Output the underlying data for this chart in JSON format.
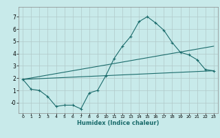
{
  "xlabel": "Humidex (Indice chaleur)",
  "background_color": "#c8eaea",
  "grid_color": "#b0c8c8",
  "line_color": "#1a6b6b",
  "xlim": [
    -0.5,
    23.5
  ],
  "ylim": [
    -0.85,
    7.8
  ],
  "xticks": [
    0,
    1,
    2,
    3,
    4,
    5,
    6,
    7,
    8,
    9,
    10,
    11,
    12,
    13,
    14,
    15,
    16,
    17,
    18,
    19,
    20,
    21,
    22,
    23
  ],
  "yticks": [
    0,
    1,
    2,
    3,
    4,
    5,
    6,
    7
  ],
  "series1_x": [
    0,
    1,
    2,
    3,
    4,
    5,
    6,
    7,
    8,
    9,
    10,
    11,
    12,
    13,
    14,
    15,
    16,
    17,
    18,
    19,
    20,
    21,
    22,
    23
  ],
  "series1_y": [
    1.9,
    1.1,
    1.0,
    0.5,
    -0.3,
    -0.2,
    -0.2,
    -0.5,
    0.8,
    1.0,
    2.2,
    3.6,
    4.6,
    5.4,
    6.6,
    7.0,
    6.5,
    5.9,
    4.9,
    4.1,
    3.9,
    3.5,
    2.7,
    2.6
  ],
  "series2_x": [
    0,
    23
  ],
  "series2_y": [
    1.9,
    2.6
  ],
  "series3_x": [
    0,
    23
  ],
  "series3_y": [
    1.9,
    4.6
  ]
}
